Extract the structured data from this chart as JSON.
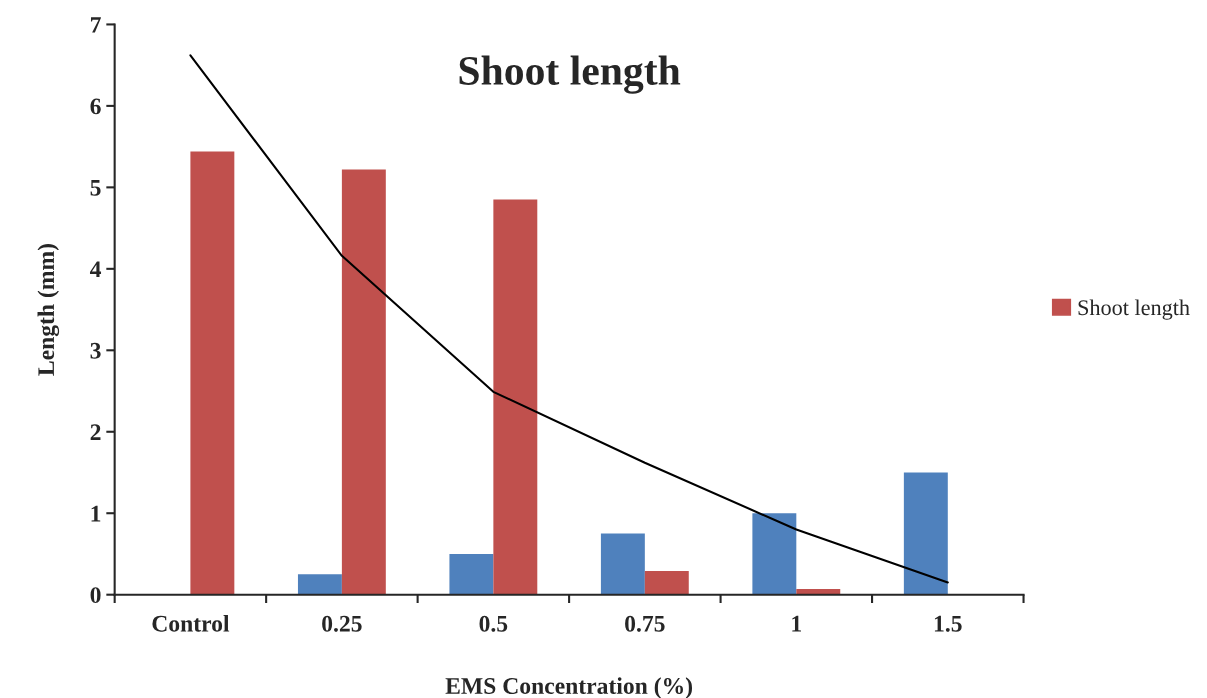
{
  "chart_data": {
    "type": "bar",
    "title": "Shoot length",
    "xlabel": "EMS Concentration (%)",
    "ylabel": "Length (mm)",
    "categories": [
      "Control",
      "0.25",
      "0.5",
      "0.75",
      "1",
      "1.5"
    ],
    "series": [
      {
        "color": "#4f81bd",
        "values": [
          0,
          0.25,
          0.5,
          0.75,
          1,
          1.5
        ]
      },
      {
        "name": "Shoot length",
        "color": "#c0504d",
        "values": [
          5.44,
          5.22,
          4.85,
          0.29,
          0.07,
          0
        ]
      },
      {
        "type": "line",
        "color": "#000000",
        "values": [
          6.62,
          4.16,
          2.49,
          1.62,
          0.8,
          0.15
        ]
      }
    ],
    "ylim": [
      0,
      7
    ],
    "yticks": [
      0,
      1,
      2,
      3,
      4,
      5,
      6,
      7
    ],
    "grid": false,
    "legend": "right"
  }
}
